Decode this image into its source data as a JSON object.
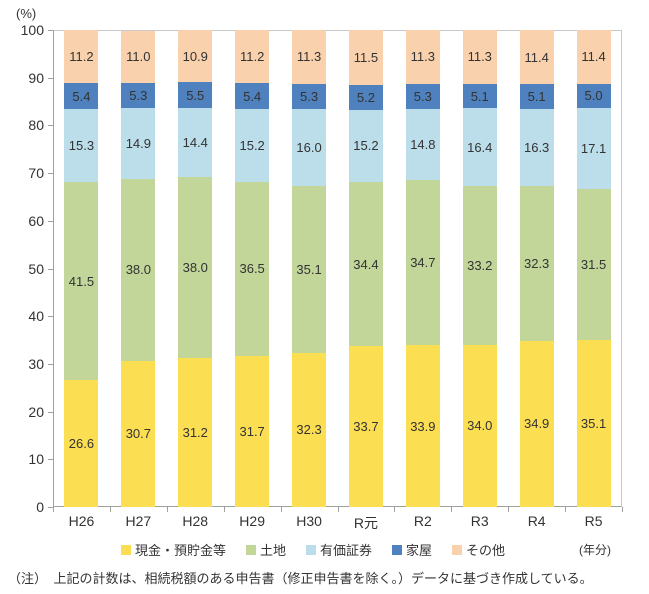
{
  "chart_data": {
    "type": "bar",
    "subtype": "stacked-percentage",
    "unit_label": "(%)",
    "x_axis_unit_label": "(年分)",
    "categories": [
      "H26",
      "H27",
      "H28",
      "H29",
      "H30",
      "R元",
      "R2",
      "R3",
      "R4",
      "R5"
    ],
    "series": [
      {
        "name": "現金・預貯金等",
        "color": "#FCDE53",
        "values": [
          26.6,
          30.7,
          31.2,
          31.7,
          32.3,
          33.7,
          33.9,
          34.0,
          34.9,
          35.1
        ]
      },
      {
        "name": "土地",
        "color": "#C2D69A",
        "values": [
          41.5,
          38.0,
          38.0,
          36.5,
          35.1,
          34.4,
          34.7,
          33.2,
          32.3,
          31.5
        ]
      },
      {
        "name": "有価証券",
        "color": "#BCDEEA",
        "values": [
          15.3,
          14.9,
          14.4,
          15.2,
          16.0,
          15.2,
          14.8,
          16.4,
          16.3,
          17.1
        ]
      },
      {
        "name": "家屋",
        "color": "#4E81BD",
        "values": [
          5.4,
          5.3,
          5.5,
          5.4,
          5.3,
          5.2,
          5.3,
          5.1,
          5.1,
          5.0
        ]
      },
      {
        "name": "その他",
        "color": "#F9D1AD",
        "values": [
          11.2,
          11.0,
          10.9,
          11.2,
          11.3,
          11.5,
          11.3,
          11.3,
          11.4,
          11.4
        ]
      }
    ],
    "y_ticks": [
      0,
      10,
      20,
      30,
      40,
      50,
      60,
      70,
      80,
      90,
      100
    ],
    "ylim": [
      0,
      100
    ],
    "grid": false,
    "legend_position": "bottom",
    "value_labels": "inside-center"
  },
  "note": "（注）　上記の計数は、相続税額のある申告書（修正申告書を除く。）データに基づき作成している。"
}
